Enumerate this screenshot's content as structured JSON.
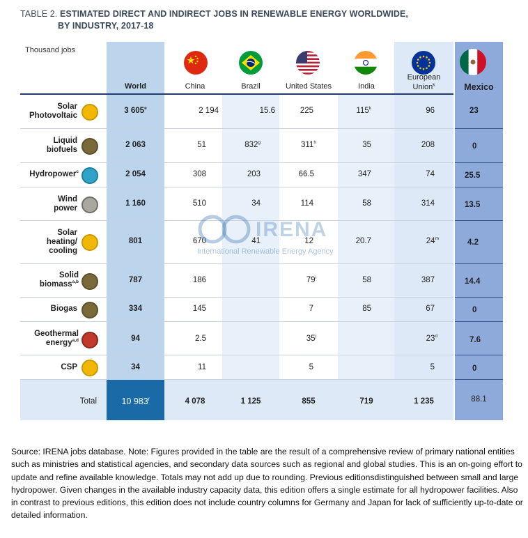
{
  "title": {
    "label": "TABLE 2.",
    "line1": "ESTIMATED DIRECT AND INDIRECT JOBS IN RENEWABLE ENERGY WORLDWIDE,",
    "line2": "BY INDUSTRY, 2017-18"
  },
  "unit_label": "Thousand jobs",
  "columns": {
    "world": "World",
    "china": "China",
    "brazil": "Brazil",
    "us": "United States",
    "india": "India",
    "eu_line1": "European",
    "eu_line2": "Union",
    "eu_sup": "k",
    "mexico": "Mexico"
  },
  "rows": [
    {
      "l1": "Solar",
      "l2": "Photovoltaic",
      "sup": "",
      "icon": "sun-icon",
      "world": "3 605",
      "world_sup": "e",
      "china": "2 194",
      "brazil": "15.6",
      "us": "225",
      "us_sup": "",
      "india": "115",
      "india_sup": "k",
      "eu": "96",
      "eu_sup": "",
      "mexico": "23"
    },
    {
      "l1": "Liquid",
      "l2": "biofuels",
      "sup": "",
      "icon": "leaf-icon",
      "world": "2 063",
      "world_sup": "",
      "china": "51",
      "brazil": "832",
      "brazil_sup": "g",
      "us": "311",
      "us_sup": "h",
      "india": "35",
      "india_sup": "",
      "eu": "208",
      "eu_sup": "",
      "mexico": "0"
    },
    {
      "l1": "Hydropower",
      "l2": "",
      "sup": "c",
      "icon": "water-drop-icon",
      "world": "2 054",
      "world_sup": "",
      "china": "308",
      "brazil": "203",
      "us": "66.5",
      "us_sup": "",
      "india": "347",
      "india_sup": "",
      "eu": "74",
      "eu_sup": "",
      "mexico": "25.5"
    },
    {
      "l1": "Wind",
      "l2": "power",
      "sup": "",
      "icon": "wind-icon",
      "world": "1 160",
      "world_sup": "",
      "china": "510",
      "brazil": "34",
      "us": "114",
      "us_sup": "",
      "india": "58",
      "india_sup": "",
      "eu": "314",
      "eu_sup": "",
      "mexico": "13.5"
    },
    {
      "l1": "Solar",
      "l2": "heating/",
      "l3": "cooling",
      "sup": "",
      "icon": "sun-icon",
      "world": "801",
      "world_sup": "",
      "china": "670",
      "brazil": "41",
      "us": "12",
      "us_sup": "",
      "india": "20.7",
      "india_sup": "",
      "eu": "24",
      "eu_sup": "m",
      "mexico": "4.2"
    },
    {
      "l1": "Solid",
      "l2": "biomass",
      "sup": "a,b",
      "icon": "leaf-icon",
      "world": "787",
      "world_sup": "",
      "china": "186",
      "brazil": "",
      "us": "79",
      "us_sup": "i",
      "india": "58",
      "india_sup": "",
      "eu": "387",
      "eu_sup": "",
      "mexico": "14.4"
    },
    {
      "l1": "Biogas",
      "l2": "",
      "sup": "",
      "icon": "leaf-icon",
      "world": "334",
      "world_sup": "",
      "china": "145",
      "brazil": "",
      "us": "7",
      "us_sup": "",
      "india": "85",
      "india_sup": "",
      "eu": "67",
      "eu_sup": "",
      "mexico": "0"
    },
    {
      "l1": "Geothermal",
      "l2": "energy",
      "sup": "a,d",
      "icon": "geothermal-icon",
      "world": "94",
      "world_sup": "",
      "china": "2.5",
      "brazil": "",
      "us": "35",
      "us_sup": "j",
      "india": "",
      "india_sup": "",
      "eu": "23",
      "eu_sup": "d",
      "mexico": "7.6"
    },
    {
      "l1": "CSP",
      "l2": "",
      "sup": "",
      "icon": "sun-icon",
      "world": "34",
      "world_sup": "",
      "china": "11",
      "brazil": "",
      "us": "5",
      "us_sup": "",
      "india": "",
      "india_sup": "",
      "eu": "5",
      "eu_sup": "",
      "mexico": "0"
    }
  ],
  "total": {
    "label": "Total",
    "world": "10 983",
    "world_sup": "f",
    "china": "4 078",
    "brazil": "1 125",
    "us": "855",
    "india": "719",
    "eu": "1 235",
    "mexico": "88.1"
  },
  "watermark": {
    "big": "IRENA",
    "small": "International Renewable Energy Agency"
  },
  "source_text": "Source: IRENA jobs database. Note: Figures provided in the table are the result of a comprehensive review of primary national entities such as ministries and statistical agencies, and secondary data sources such as regional and global studies. This is an on-going effort to update and refine available knowledge. Totals may not add up due to rounding. Previous editionsdistinguished between small and large hydropower. Given changes in the available industry capacity data, this edition offers a single estimate for all hydropower facilities. Also in contrast to previous editions, this edition does not include country columns for Germany and Japan for lack of sufficiently up-to-date or detailed information.",
  "colors": {
    "world_col": "#bcd5ec",
    "world_total": "#1a6aa8",
    "mexico_col": "#8eaadb",
    "eu_col": "#dde9f6",
    "stripe": "#e8f0f9"
  }
}
